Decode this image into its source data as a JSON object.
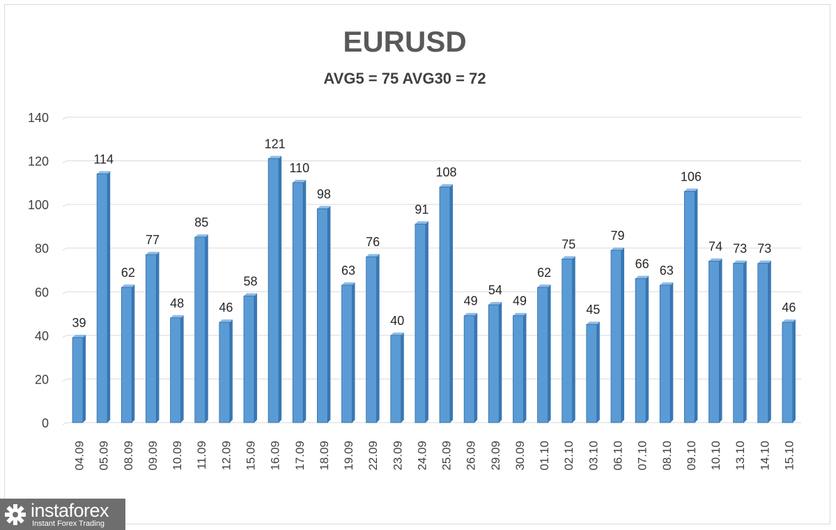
{
  "chart_data": {
    "type": "bar",
    "title": "EURUSD",
    "subtitle": "AVG5 = 75 AVG30 = 72",
    "categories": [
      "04.09",
      "05.09",
      "08.09",
      "09.09",
      "10.09",
      "11.09",
      "12.09",
      "15.09",
      "16.09",
      "17.09",
      "18.09",
      "19.09",
      "22.09",
      "23.09",
      "24.09",
      "25.09",
      "26.09",
      "29.09",
      "30.09",
      "01.10",
      "02.10",
      "03.10",
      "06.10",
      "07.10",
      "08.10",
      "09.10",
      "10.10",
      "13.10",
      "14.10",
      "15.10"
    ],
    "values": [
      39,
      114,
      62,
      77,
      48,
      85,
      46,
      58,
      121,
      110,
      98,
      63,
      76,
      40,
      91,
      108,
      49,
      54,
      49,
      62,
      75,
      45,
      79,
      66,
      63,
      106,
      74,
      73,
      73,
      46
    ],
    "yticks": [
      "0",
      "20",
      "40",
      "60",
      "80",
      "100",
      "120",
      "140"
    ],
    "ylim": [
      0,
      140
    ],
    "grid": true,
    "bar_color": "#5b9bd5",
    "bar_edge_color": "#2e6aa5"
  },
  "logo": {
    "name": "instaforex",
    "tagline": "Instant Forex Trading"
  }
}
